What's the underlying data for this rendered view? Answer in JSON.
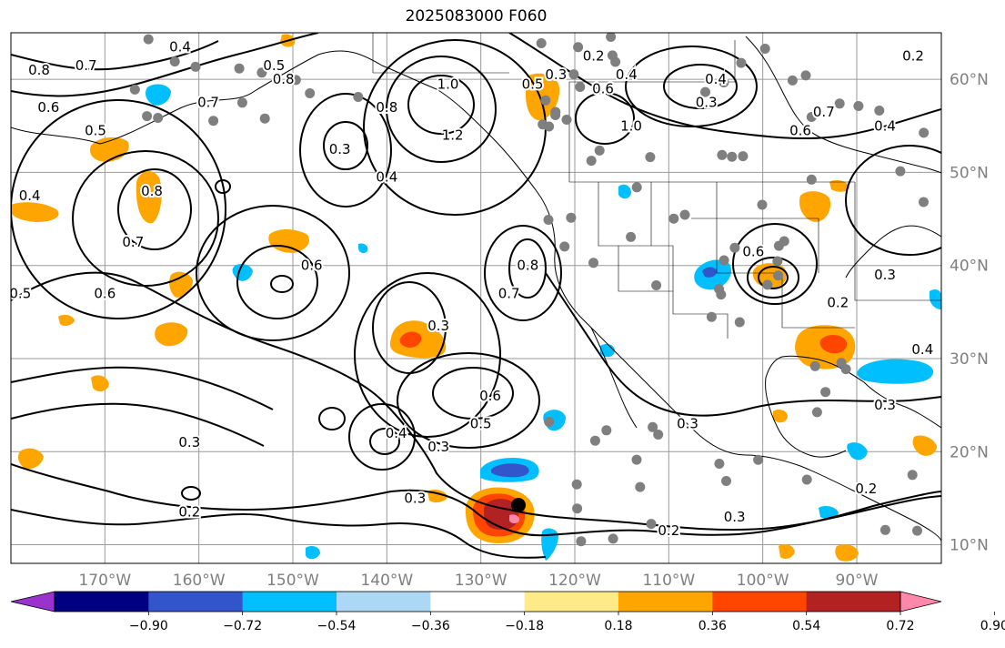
{
  "title": "2025083000 F060",
  "map": {
    "projection": "PlateCarree",
    "lon_range": [
      -180,
      -81
    ],
    "lat_range": [
      8,
      65
    ]
  },
  "lon_ticks": [
    {
      "value": -170,
      "label": "170°W"
    },
    {
      "value": -160,
      "label": "160°W"
    },
    {
      "value": -150,
      "label": "150°W"
    },
    {
      "value": -140,
      "label": "140°W"
    },
    {
      "value": -130,
      "label": "130°W"
    },
    {
      "value": -120,
      "label": "120°W"
    },
    {
      "value": -110,
      "label": "110°W"
    },
    {
      "value": -100,
      "label": "100°W"
    },
    {
      "value": -90,
      "label": "90°W"
    }
  ],
  "lat_ticks": [
    {
      "value": 60,
      "label": "60°N"
    },
    {
      "value": 50,
      "label": "50°N"
    },
    {
      "value": 40,
      "label": "40°N"
    },
    {
      "value": 30,
      "label": "30°N"
    },
    {
      "value": 20,
      "label": "20°N"
    },
    {
      "value": 10,
      "label": "10°N"
    }
  ],
  "colorbar": {
    "colors": [
      "#9933cc",
      "#000080",
      "#3355cc",
      "#00bfff",
      "#add8f5",
      "#ffffff",
      "#ffea88",
      "#ffa500",
      "#ff4500",
      "#b22222",
      "#ff88aa"
    ],
    "tick_labels": [
      "−0.90",
      "−0.72",
      "−0.54",
      "−0.36",
      "−0.18",
      "0.18",
      "0.36",
      "0.54",
      "0.72",
      "0.90"
    ]
  },
  "contour_labels": [
    {
      "text": "0.8",
      "lon": -177,
      "lat": 61
    },
    {
      "text": "0.7",
      "lon": -172,
      "lat": 61.5
    },
    {
      "text": "0.6",
      "lon": -176,
      "lat": 57
    },
    {
      "text": "0.5",
      "lon": -171,
      "lat": 54.5
    },
    {
      "text": "0.4",
      "lon": -178,
      "lat": 47.5
    },
    {
      "text": "0.4",
      "lon": -162,
      "lat": 63.5
    },
    {
      "text": "0.5",
      "lon": -152,
      "lat": 61.5
    },
    {
      "text": "0.7",
      "lon": -159,
      "lat": 57.5
    },
    {
      "text": "0.8",
      "lon": -151,
      "lat": 60
    },
    {
      "text": "0.8",
      "lon": -165,
      "lat": 48
    },
    {
      "text": "0.7",
      "lon": -167,
      "lat": 42.5
    },
    {
      "text": "0.6",
      "lon": -148,
      "lat": 40
    },
    {
      "text": "0.6",
      "lon": -170,
      "lat": 37
    },
    {
      "text": "0.5",
      "lon": -179,
      "lat": 37
    },
    {
      "text": "0.3",
      "lon": -145,
      "lat": 52.5
    },
    {
      "text": "0.8",
      "lon": -140,
      "lat": 57
    },
    {
      "text": "0.4",
      "lon": -140,
      "lat": 49.5
    },
    {
      "text": "1.2",
      "lon": -133,
      "lat": 54
    },
    {
      "text": "1.0",
      "lon": -133.5,
      "lat": 59.5
    },
    {
      "text": "0.3",
      "lon": -134.5,
      "lat": 33.5
    },
    {
      "text": "0.7",
      "lon": -127,
      "lat": 37
    },
    {
      "text": "0.8",
      "lon": -125,
      "lat": 40
    },
    {
      "text": "0.6",
      "lon": -129,
      "lat": 26
    },
    {
      "text": "0.5",
      "lon": -130,
      "lat": 23
    },
    {
      "text": "0.4",
      "lon": -139,
      "lat": 22
    },
    {
      "text": "0.3",
      "lon": -134.5,
      "lat": 20.5
    },
    {
      "text": "0.3",
      "lon": -161,
      "lat": 21
    },
    {
      "text": "0.3",
      "lon": -137,
      "lat": 15
    },
    {
      "text": "0.2",
      "lon": -161,
      "lat": 13.5
    },
    {
      "text": "0.3",
      "lon": -122,
      "lat": 60.5
    },
    {
      "text": "0.2",
      "lon": -118,
      "lat": 62.5
    },
    {
      "text": "0.5",
      "lon": -124.5,
      "lat": 59.5
    },
    {
      "text": "0.6",
      "lon": -117,
      "lat": 59
    },
    {
      "text": "0.4",
      "lon": -114.5,
      "lat": 60.5
    },
    {
      "text": "1.0",
      "lon": -114,
      "lat": 55
    },
    {
      "text": "0.3",
      "lon": -106,
      "lat": 57.5
    },
    {
      "text": "0.4",
      "lon": -105,
      "lat": 60
    },
    {
      "text": "0.7",
      "lon": -93.5,
      "lat": 56.5
    },
    {
      "text": "0.6",
      "lon": -96,
      "lat": 54.5
    },
    {
      "text": "0.4",
      "lon": -87,
      "lat": 55
    },
    {
      "text": "0.2",
      "lon": -84,
      "lat": 62.5
    },
    {
      "text": "0.6",
      "lon": -101,
      "lat": 41.5
    },
    {
      "text": "0.2",
      "lon": -92,
      "lat": 36
    },
    {
      "text": "0.3",
      "lon": -87,
      "lat": 39
    },
    {
      "text": "0.4",
      "lon": -83,
      "lat": 31
    },
    {
      "text": "0.3",
      "lon": -87,
      "lat": 25
    },
    {
      "text": "0.3",
      "lon": -108,
      "lat": 23
    },
    {
      "text": "0.2",
      "lon": -110,
      "lat": 11.5
    },
    {
      "text": "0.3",
      "lon": -103,
      "lat": 13
    },
    {
      "text": "0.2",
      "lon": -89,
      "lat": 16
    }
  ]
}
